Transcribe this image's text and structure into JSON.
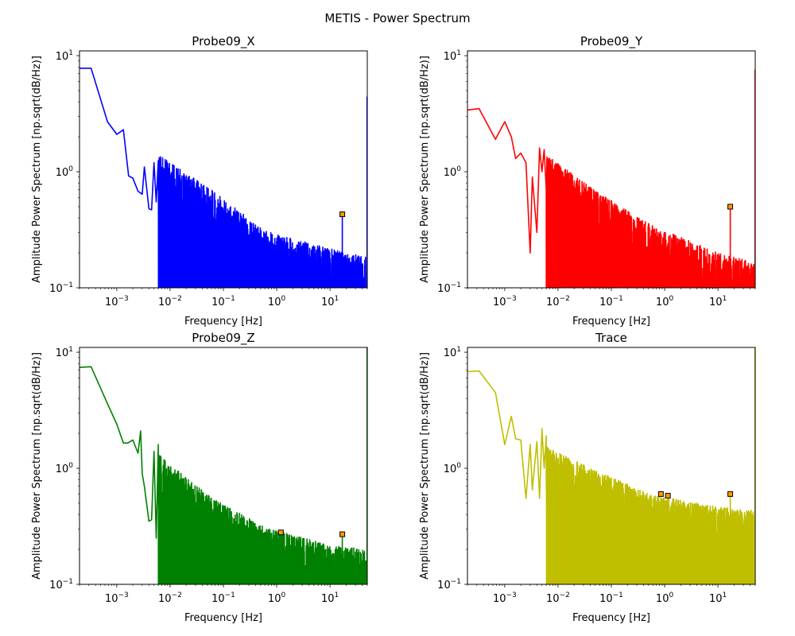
{
  "figure": {
    "suptitle": "METIS - Power Spectrum"
  },
  "chart_data": [
    {
      "type": "line",
      "title": "Probe09_X",
      "xlabel": "Frequency [Hz]",
      "ylabel": "Amplitude Power Spectrum [np.sqrt(dB/Hz)]",
      "xscale": "log",
      "yscale": "log",
      "xlim": [
        0.0002,
        50
      ],
      "ylim": [
        0.1,
        11
      ],
      "xticks": [
        {
          "v": 0.001,
          "base": "10",
          "exp": "−3"
        },
        {
          "v": 0.01,
          "base": "10",
          "exp": "−2"
        },
        {
          "v": 0.1,
          "base": "10",
          "exp": "−1"
        },
        {
          "v": 1,
          "base": "10",
          "exp": "0"
        },
        {
          "v": 10,
          "base": "10",
          "exp": "1"
        }
      ],
      "yticks": [
        {
          "v": 0.1,
          "base": "10",
          "exp": "−1"
        },
        {
          "v": 1,
          "base": "10",
          "exp": "0"
        },
        {
          "v": 10,
          "base": "10",
          "exp": "1"
        }
      ],
      "color": "#0000ff",
      "series": [
        {
          "x": [
            0.0002,
            0.00033,
            0.00067,
            0.001,
            0.00133,
            0.00167,
            0.002,
            0.0025,
            0.003,
            0.0033,
            0.004,
            0.0045,
            0.005,
            0.0055,
            0.006
          ],
          "y": [
            7.8,
            7.8,
            2.7,
            2.1,
            2.3,
            0.92,
            0.88,
            0.68,
            0.64,
            1.1,
            0.48,
            0.47,
            1.2,
            0.55,
            1.25
          ]
        }
      ],
      "noise": {
        "x_start": 0.006,
        "x_end": 47,
        "decades": [
          {
            "x": 0.006,
            "y": 0.9
          },
          {
            "x": 0.06,
            "y": 0.45
          },
          {
            "x": 0.6,
            "y": 0.2
          },
          {
            "x": 10,
            "y": 0.14
          },
          {
            "x": 47,
            "y": 0.12
          }
        ],
        "dips": [
          0.012,
          0.016,
          0.022,
          0.025,
          0.028,
          0.035,
          0.045
        ]
      },
      "peaks": [
        {
          "x": 17,
          "y": 0.43
        }
      ],
      "edge_spike": {
        "x": 49.5,
        "y": 4.4
      }
    },
    {
      "type": "line",
      "title": "Probe09_Y",
      "xlabel": "Frequency [Hz]",
      "ylabel": "Amplitude Power Spectrum [np.sqrt(dB/Hz)]",
      "xscale": "log",
      "yscale": "log",
      "xlim": [
        0.0002,
        50
      ],
      "ylim": [
        0.1,
        11
      ],
      "xticks": [
        {
          "v": 0.001,
          "base": "10",
          "exp": "−3"
        },
        {
          "v": 0.01,
          "base": "10",
          "exp": "−2"
        },
        {
          "v": 0.1,
          "base": "10",
          "exp": "−1"
        },
        {
          "v": 1,
          "base": "10",
          "exp": "0"
        },
        {
          "v": 10,
          "base": "10",
          "exp": "1"
        }
      ],
      "yticks": [
        {
          "v": 0.1,
          "base": "10",
          "exp": "−1"
        },
        {
          "v": 1,
          "base": "10",
          "exp": "0"
        },
        {
          "v": 10,
          "base": "10",
          "exp": "1"
        }
      ],
      "color": "#ff0000",
      "series": [
        {
          "x": [
            0.0002,
            0.00033,
            0.00067,
            0.001,
            0.00133,
            0.0016,
            0.002,
            0.0025,
            0.003,
            0.0033,
            0.004,
            0.0045,
            0.005,
            0.0055,
            0.006
          ],
          "y": [
            3.4,
            3.5,
            1.9,
            2.7,
            2.0,
            1.3,
            1.45,
            1.2,
            0.2,
            0.9,
            0.3,
            1.6,
            1.0,
            1.55,
            0.7
          ]
        }
      ],
      "noise": {
        "x_start": 0.006,
        "x_end": 47,
        "decades": [
          {
            "x": 0.006,
            "y": 0.9
          },
          {
            "x": 0.06,
            "y": 0.42
          },
          {
            "x": 0.6,
            "y": 0.22
          },
          {
            "x": 10,
            "y": 0.13
          },
          {
            "x": 47,
            "y": 0.11
          }
        ],
        "dips": [
          0.03,
          0.035,
          0.05
        ]
      },
      "peaks": [
        {
          "x": 17,
          "y": 0.5
        }
      ],
      "edge_spike": {
        "x": 49.5,
        "y": 7.5
      }
    },
    {
      "type": "line",
      "title": "Probe09_Z",
      "xlabel": "Frequency [Hz]",
      "ylabel": "Amplitude Power Spectrum [np.sqrt(dB/Hz)]",
      "xscale": "log",
      "yscale": "log",
      "xlim": [
        0.0002,
        50
      ],
      "ylim": [
        0.1,
        11
      ],
      "xticks": [
        {
          "v": 0.001,
          "base": "10",
          "exp": "−3"
        },
        {
          "v": 0.01,
          "base": "10",
          "exp": "−2"
        },
        {
          "v": 0.1,
          "base": "10",
          "exp": "−1"
        },
        {
          "v": 1,
          "base": "10",
          "exp": "0"
        },
        {
          "v": 10,
          "base": "10",
          "exp": "1"
        }
      ],
      "yticks": [
        {
          "v": 0.1,
          "base": "10",
          "exp": "−1"
        },
        {
          "v": 1,
          "base": "10",
          "exp": "0"
        },
        {
          "v": 10,
          "base": "10",
          "exp": "1"
        }
      ],
      "color": "#008000",
      "series": [
        {
          "x": [
            0.0002,
            0.00033,
            0.00067,
            0.001,
            0.00133,
            0.0016,
            0.002,
            0.0025,
            0.0028,
            0.003,
            0.0033,
            0.004,
            0.0045,
            0.005,
            0.0055,
            0.006
          ],
          "y": [
            7.4,
            7.5,
            3.6,
            2.4,
            1.65,
            1.65,
            1.75,
            1.35,
            2.1,
            0.9,
            0.7,
            0.35,
            0.36,
            1.4,
            0.25,
            1.6
          ]
        }
      ],
      "noise": {
        "x_start": 0.006,
        "x_end": 47,
        "decades": [
          {
            "x": 0.006,
            "y": 0.85
          },
          {
            "x": 0.06,
            "y": 0.36
          },
          {
            "x": 0.6,
            "y": 0.2
          },
          {
            "x": 10,
            "y": 0.14
          },
          {
            "x": 47,
            "y": 0.13
          }
        ],
        "dips": [
          0.025,
          0.03,
          0.04
        ]
      },
      "peaks": [
        {
          "x": 1.2,
          "y": 0.28
        },
        {
          "x": 17,
          "y": 0.27
        }
      ],
      "edge_spike": {
        "x": 49.5,
        "y": 11
      }
    },
    {
      "type": "line",
      "title": "Trace",
      "xlabel": "Frequency [Hz]",
      "ylabel": "Amplitude Power Spectrum [np.sqrt(dB/Hz)]",
      "xscale": "log",
      "yscale": "log",
      "xlim": [
        0.0002,
        50
      ],
      "ylim": [
        0.1,
        11
      ],
      "xticks": [
        {
          "v": 0.001,
          "base": "10",
          "exp": "−3"
        },
        {
          "v": 0.01,
          "base": "10",
          "exp": "−2"
        },
        {
          "v": 0.1,
          "base": "10",
          "exp": "−1"
        },
        {
          "v": 1,
          "base": "10",
          "exp": "0"
        },
        {
          "v": 10,
          "base": "10",
          "exp": "1"
        }
      ],
      "yticks": [
        {
          "v": 0.1,
          "base": "10",
          "exp": "−1"
        },
        {
          "v": 1,
          "base": "10",
          "exp": "0"
        },
        {
          "v": 10,
          "base": "10",
          "exp": "1"
        }
      ],
      "color": "#bfbf00",
      "series": [
        {
          "x": [
            0.0002,
            0.00033,
            0.00067,
            0.001,
            0.00133,
            0.0016,
            0.002,
            0.0025,
            0.003,
            0.0033,
            0.004,
            0.0045,
            0.005,
            0.0055,
            0.006
          ],
          "y": [
            6.8,
            6.9,
            4.5,
            1.6,
            2.8,
            1.8,
            1.75,
            0.55,
            1.6,
            0.65,
            1.7,
            0.55,
            2.2,
            1.0,
            1.9
          ]
        }
      ],
      "noise": {
        "x_start": 0.006,
        "x_end": 47,
        "decades": [
          {
            "x": 0.006,
            "y": 1.0
          },
          {
            "x": 0.06,
            "y": 0.6
          },
          {
            "x": 0.6,
            "y": 0.38
          },
          {
            "x": 10,
            "y": 0.3
          },
          {
            "x": 47,
            "y": 0.28
          }
        ],
        "dips": [
          0.012,
          0.015,
          0.04,
          0.05
        ]
      },
      "peaks": [
        {
          "x": 0.85,
          "y": 0.6
        },
        {
          "x": 1.15,
          "y": 0.58
        },
        {
          "x": 17,
          "y": 0.6
        }
      ],
      "edge_spike": {
        "x": 49.5,
        "y": 11
      }
    }
  ]
}
